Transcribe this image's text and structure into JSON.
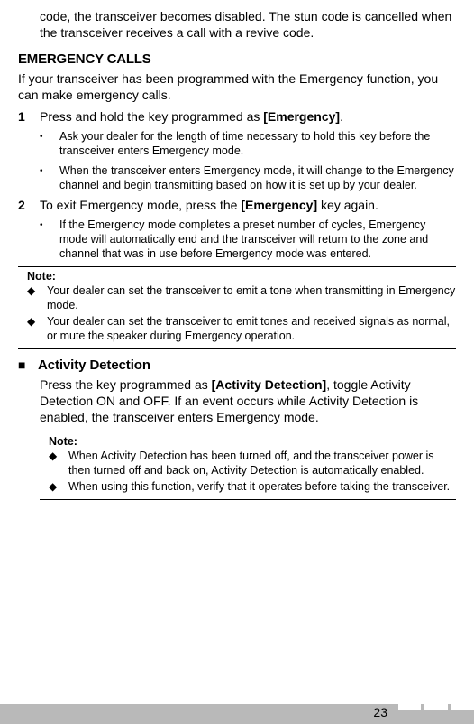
{
  "intro_cont": "code, the transceiver becomes disabled.  The stun code is cancelled when the transceiver receives a call with a revive code.",
  "h_emerg": "EMERGENCY CALLS",
  "emerg_intro": "If your transceiver has been programmed with the Emergency function, you can make emergency calls.",
  "step1_num": "1",
  "step1_txt_a": "Press and hold the key programmed as ",
  "step1_txt_b": "[Emergency]",
  "step1_txt_c": ".",
  "s1_b1": "Ask your dealer for the length of time necessary to hold this key before the transceiver enters Emergency mode.",
  "s1_b2": "When the transceiver enters Emergency mode, it will change to the Emergency channel and begin transmitting based on how it is set up by your dealer.",
  "step2_num": "2",
  "step2_txt_a": "To exit Emergency mode, press the ",
  "step2_txt_b": "[Emergency]",
  "step2_txt_c": " key again.",
  "s2_b1": "If the Emergency mode completes a preset number of cycles, Emergency mode will automatically end and the transceiver will return to the zone and channel that was in use before Emergency mode was entered.",
  "note1_label": "Note:",
  "note1_d1": "Your dealer can set the transceiver to emit a tone when transmitting in Emergency mode.",
  "note1_d2": "Your dealer can set the transceiver to emit tones and received signals as normal, or mute the speaker during Emergency operation.",
  "sub_h": "Activity Detection",
  "sub_p_a": "Press the key programmed as ",
  "sub_p_b": "[Activity Detection]",
  "sub_p_c": ", toggle Activity Detection ON and OFF. If an event occurs while Activity Detection is enabled, the transceiver enters Emergency mode.",
  "note2_label": "Note:",
  "note2_d1": "When Activity Detection has been turned off, and the transceiver power is then turned off and back on, Activity Detection is automatically enabled.",
  "note2_d2": "When using this function, verify that it operates before taking the transceiver.",
  "page_num": "23"
}
